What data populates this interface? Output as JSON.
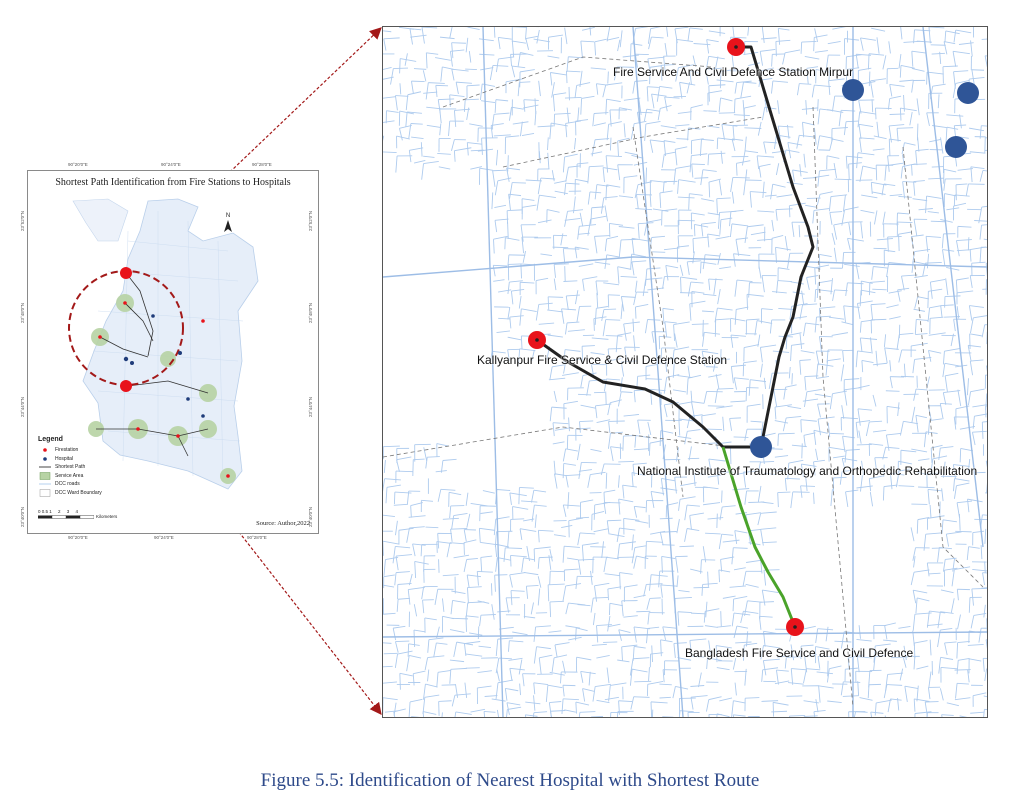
{
  "overview": {
    "title": "Shortest Path Identification from Fire Stations to Hospitals",
    "source": "Source: Author,2022",
    "north": "N",
    "coords_top": [
      "90°20'0\"E",
      "90°24'0\"E",
      "90°28'0\"E"
    ],
    "coords_bottom": [
      "90°20'0\"E",
      "90°24'0\"E",
      "90°28'0\"E"
    ],
    "coords_left": [
      "23°52'0\"N",
      "23°48'0\"N",
      "23°44'0\"N",
      "23°40'0\"N"
    ],
    "coords_right": [
      "23°52'0\"N",
      "23°48'0\"N",
      "23°44'0\"N",
      "23°40'0\"N"
    ],
    "legend": {
      "title": "Legend",
      "items": [
        {
          "label": "Firestation",
          "symbol": "red-dot"
        },
        {
          "label": "Hospital",
          "symbol": "blue-dot"
        },
        {
          "label": "Shortest Path",
          "symbol": "line"
        },
        {
          "label": "Service Area",
          "symbol": "green-area"
        },
        {
          "label": "DCC roads",
          "symbol": "road-line"
        },
        {
          "label": "DCC Ward Boundary",
          "symbol": "boundary"
        }
      ]
    },
    "scale": {
      "ticks": "0 0.5 1     2     3     4",
      "unit": "Kilometers"
    }
  },
  "detail": {
    "labels": {
      "mirpur": "Fire Service And Civil Defence Station Mirpur",
      "kallyanpur": "Kallyanpur Fire Service & Civil Defence Station",
      "nitor": "National Institute of Traumatology and Orthopedic Rehabilitation",
      "bangladesh": "Bangladesh Fire Service and Civil Defence"
    }
  },
  "colors": {
    "firestation": "#e8131b",
    "hospital": "#2f5597",
    "route_firestation": "#222222",
    "route_hospital": "#4aa32a",
    "roads": "#aecbee",
    "arrow": "#a31919",
    "caption": "#2e4a8a"
  },
  "caption": "Figure 5.5: Identification of Nearest Hospital with Shortest Route"
}
